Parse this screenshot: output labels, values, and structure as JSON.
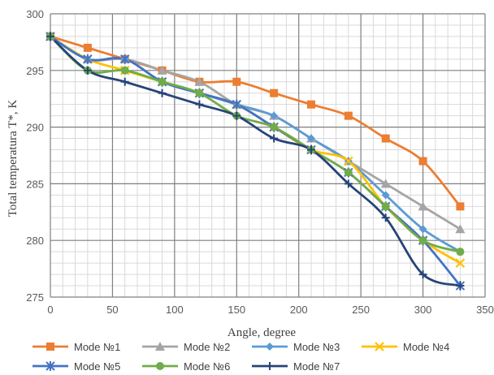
{
  "chart_data": {
    "type": "line",
    "title": "",
    "xlabel": "Angle, degree",
    "ylabel": "Total temperatura T*, K",
    "xlim": [
      0,
      350
    ],
    "ylim": [
      275,
      300
    ],
    "xticks": [
      0,
      50,
      100,
      150,
      200,
      250,
      300,
      350
    ],
    "yticks": [
      275,
      280,
      285,
      290,
      295,
      300
    ],
    "x_minor_step": 10,
    "y_minor_step": 1,
    "grid": true,
    "smooth": true,
    "legend_position": "bottom",
    "x": [
      0,
      30,
      60,
      90,
      120,
      150,
      180,
      210,
      240,
      270,
      300,
      330
    ],
    "series": [
      {
        "name": "Mode №1",
        "color": "#ED7D31",
        "marker": "square",
        "values": [
          298,
          297,
          296,
          295,
          294,
          294,
          293,
          292,
          291,
          289,
          287,
          283
        ]
      },
      {
        "name": "Mode №2",
        "color": "#A5A5A5",
        "marker": "triangle",
        "values": [
          298,
          296,
          296,
          295,
          294,
          292,
          291,
          289,
          287,
          285,
          283,
          281
        ]
      },
      {
        "name": "Mode №3",
        "color": "#5B9BD5",
        "marker": "diamond",
        "values": [
          298,
          296,
          296,
          294,
          293,
          292,
          291,
          289,
          287,
          284,
          281,
          279
        ]
      },
      {
        "name": "Mode №4",
        "color": "#FFC000",
        "marker": "x",
        "values": [
          298,
          296,
          295,
          294,
          293,
          292,
          290,
          288,
          287,
          283,
          280,
          278
        ]
      },
      {
        "name": "Mode №5",
        "color": "#4472C4",
        "marker": "star",
        "values": [
          298,
          296,
          296,
          294,
          293,
          292,
          290,
          288,
          286,
          283,
          280,
          276
        ]
      },
      {
        "name": "Mode №6",
        "color": "#70AD47",
        "marker": "circle",
        "values": [
          298,
          295,
          295,
          294,
          293,
          291,
          290,
          288,
          286,
          283,
          280,
          279
        ]
      },
      {
        "name": "Mode №7",
        "color": "#264478",
        "marker": "plus",
        "values": [
          298,
          295,
          294,
          293,
          292,
          291,
          289,
          288,
          285,
          282,
          277,
          276
        ]
      }
    ]
  }
}
